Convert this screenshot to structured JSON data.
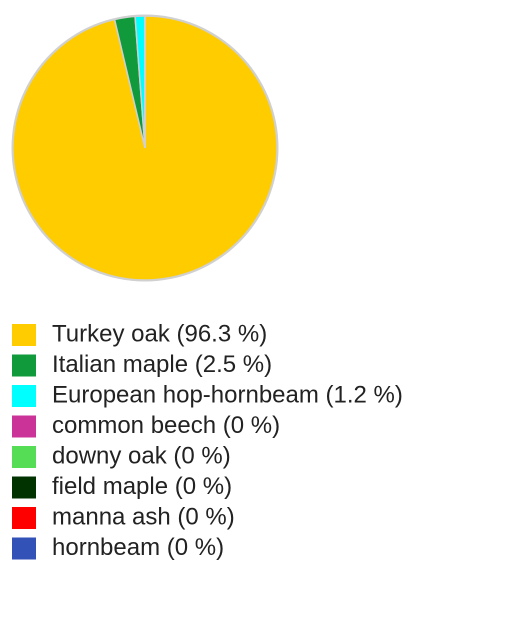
{
  "chart_data": {
    "type": "pie",
    "categories": [
      "Turkey oak (96.3 %)",
      "Italian maple (2.5 %)",
      "European hop-hornbeam (1.2 %)",
      "common beech (0 %)",
      "downy oak (0 %)",
      "field maple (0 %)",
      "manna ash (0 %)",
      "hornbeam (0 %)"
    ],
    "values": [
      96.3,
      2.5,
      1.2,
      0,
      0,
      0,
      0,
      0
    ],
    "colors": [
      "#ffcc00",
      "#109a3c",
      "#00ffff",
      "#cc3399",
      "#55dd55",
      "#003300",
      "#ff0000",
      "#3352b8"
    ]
  }
}
